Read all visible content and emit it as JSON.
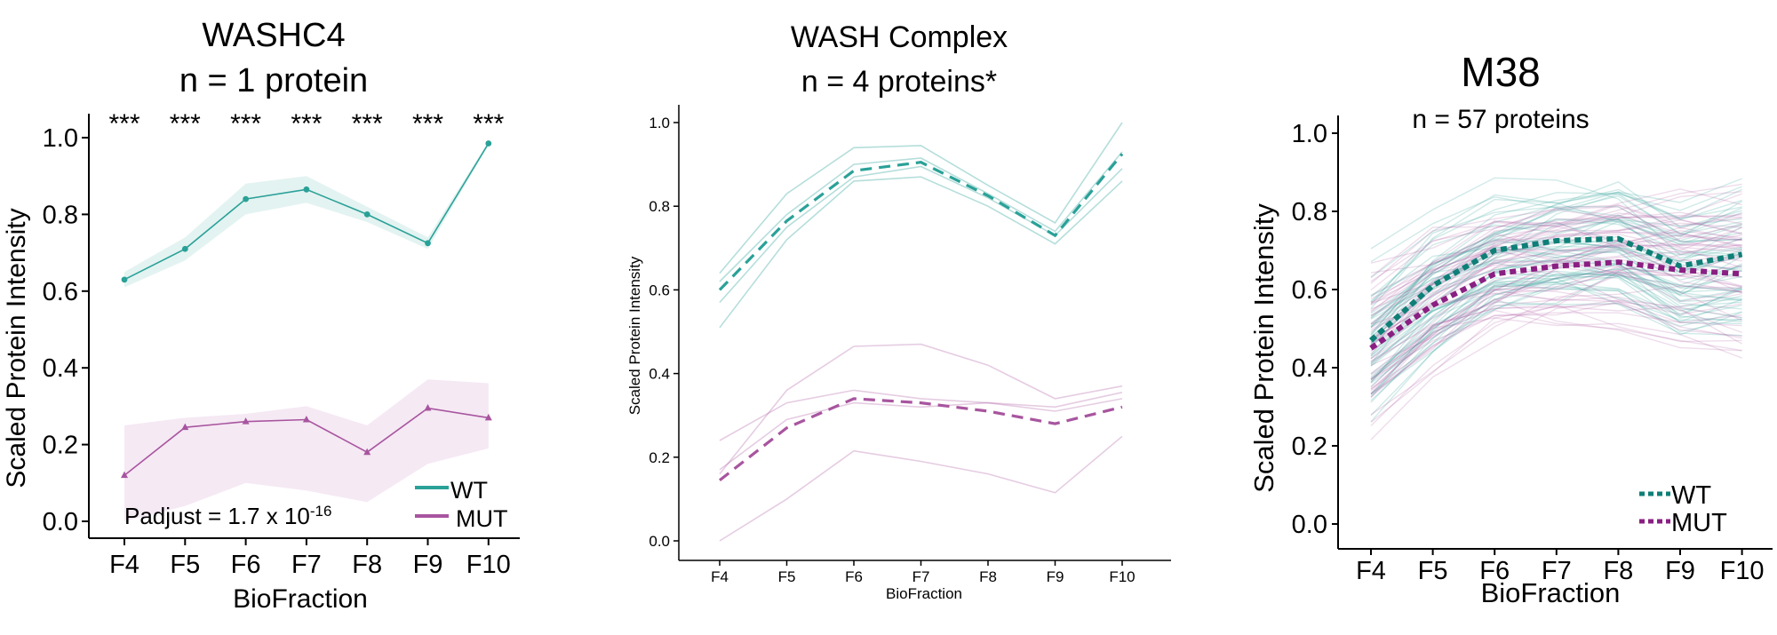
{
  "colors": {
    "wt": "#2aa198",
    "wt_dark": "#0e7f77",
    "mut": "#a8559f",
    "mut_dark": "#8a1f82",
    "wt_band": "#e3f3f1",
    "mut_band": "#f5e9f4"
  },
  "charts": [
    {
      "title_line1": "WASHC4",
      "title_line2": "n = 1 protein",
      "xlabel": "BioFraction",
      "ylabel": "Scaled Protein Intensity",
      "significance": [
        "***",
        "***",
        "***",
        "***",
        "***",
        "***",
        "***"
      ],
      "annotation_prefix": "Padjust = 1.7 x 10",
      "annotation_exponent": "-16",
      "legend": [
        {
          "label": "WT",
          "key": "wt"
        },
        {
          "label": "MUT",
          "key": "mut"
        }
      ]
    },
    {
      "title_line1": "WASH Complex",
      "title_line2": "n = 4 proteins*",
      "xlabel": "BioFraction",
      "ylabel": "Scaled Protein Intensity"
    },
    {
      "title_line1": "M38",
      "title_line2": "n = 57 proteins",
      "xlabel": "BioFraction",
      "ylabel": "Scaled Protein Intensity",
      "legend": [
        {
          "label": "WT",
          "key": "wt_dark"
        },
        {
          "label": "MUT",
          "key": "mut_dark"
        }
      ]
    }
  ],
  "chart_data": [
    {
      "type": "line",
      "categories": [
        "F4",
        "F5",
        "F6",
        "F7",
        "F8",
        "F9",
        "F10"
      ],
      "ylim": [
        0.0,
        1.05
      ],
      "yticks": [
        "0.0",
        "0.2",
        "0.4",
        "0.6",
        "0.8",
        "1.0"
      ],
      "series": [
        {
          "name": "WT",
          "values": [
            0.63,
            0.71,
            0.84,
            0.865,
            0.8,
            0.725,
            0.985
          ],
          "band_lower": [
            0.61,
            0.68,
            0.8,
            0.83,
            0.78,
            0.71,
            0.98
          ],
          "band_upper": [
            0.65,
            0.74,
            0.88,
            0.9,
            0.82,
            0.74,
            0.99
          ]
        },
        {
          "name": "MUT",
          "values": [
            0.12,
            0.245,
            0.26,
            0.265,
            0.18,
            0.295,
            0.27
          ],
          "band_lower": [
            0.0,
            0.04,
            0.1,
            0.08,
            0.05,
            0.15,
            0.19
          ],
          "band_upper": [
            0.25,
            0.27,
            0.28,
            0.3,
            0.25,
            0.37,
            0.36
          ]
        }
      ]
    },
    {
      "type": "line",
      "categories": [
        "F4",
        "F5",
        "F6",
        "F7",
        "F8",
        "F9",
        "F10"
      ],
      "ylim": [
        -0.05,
        1.05
      ],
      "yticks": [
        "0.0",
        "0.2",
        "0.4",
        "0.6",
        "0.8",
        "1.0"
      ],
      "series": [
        {
          "name": "WT",
          "values": [
            0.6,
            0.765,
            0.885,
            0.905,
            0.825,
            0.73,
            0.925
          ]
        },
        {
          "name": "MUT",
          "values": [
            0.145,
            0.27,
            0.34,
            0.33,
            0.31,
            0.28,
            0.32
          ]
        }
      ],
      "wt_proteins": [
        [
          0.64,
          0.83,
          0.94,
          0.945,
          0.85,
          0.76,
          1.0
        ],
        [
          0.62,
          0.78,
          0.9,
          0.915,
          0.83,
          0.74,
          0.93
        ],
        [
          0.57,
          0.75,
          0.87,
          0.895,
          0.82,
          0.73,
          0.89
        ],
        [
          0.51,
          0.72,
          0.86,
          0.87,
          0.8,
          0.71,
          0.86
        ]
      ],
      "mut_proteins": [
        [
          0.16,
          0.36,
          0.465,
          0.47,
          0.42,
          0.34,
          0.37
        ],
        [
          0.24,
          0.33,
          0.36,
          0.34,
          0.33,
          0.32,
          0.355
        ],
        [
          0.17,
          0.29,
          0.33,
          0.32,
          0.33,
          0.31,
          0.34
        ],
        [
          0.0,
          0.1,
          0.215,
          0.19,
          0.16,
          0.115,
          0.25
        ]
      ]
    },
    {
      "type": "line",
      "categories": [
        "F4",
        "F5",
        "F6",
        "F7",
        "F8",
        "F9",
        "F10"
      ],
      "ylim": [
        -0.06,
        1.04
      ],
      "yticks": [
        "0.0",
        "0.2",
        "0.4",
        "0.6",
        "0.8",
        "1.0"
      ],
      "series": [
        {
          "name": "WT",
          "values": [
            0.47,
            0.61,
            0.7,
            0.725,
            0.73,
            0.66,
            0.69
          ]
        },
        {
          "name": "MUT",
          "values": [
            0.45,
            0.56,
            0.64,
            0.66,
            0.67,
            0.65,
            0.64
          ]
        }
      ],
      "protein_count": 57
    }
  ]
}
